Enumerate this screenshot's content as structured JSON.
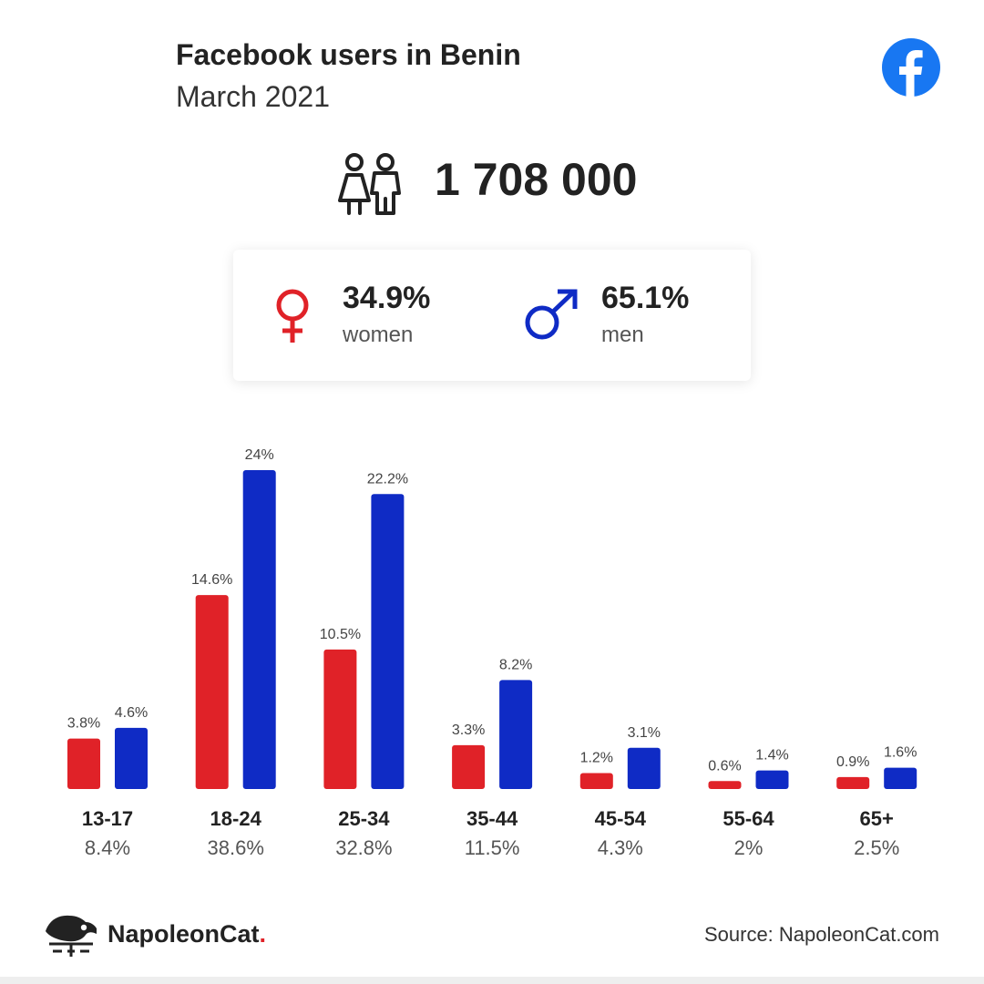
{
  "header": {
    "title": "Facebook users in Benin",
    "subtitle": "March 2021"
  },
  "flag": {
    "green": "#008751",
    "yellow": "#fcd116",
    "red": "#e8112d"
  },
  "icons": {
    "brand": "facebook-logo-icon",
    "people": "people-icon",
    "female": "female-symbol-icon",
    "male": "male-symbol-icon"
  },
  "summary": {
    "total_users": "1 708 000",
    "women_pct": "34.9%",
    "women_label": "women",
    "men_pct": "65.1%",
    "men_label": "men"
  },
  "colors": {
    "women": "#e02228",
    "men": "#0f2bc5",
    "facebook": "#1877f2"
  },
  "chart_data": {
    "type": "bar",
    "categories": [
      "13-17",
      "18-24",
      "25-34",
      "35-44",
      "45-54",
      "55-64",
      "65+"
    ],
    "category_totals": [
      "8.4%",
      "38.6%",
      "32.8%",
      "11.5%",
      "4.3%",
      "2%",
      "2.5%"
    ],
    "series": [
      {
        "name": "women",
        "values": [
          3.8,
          14.6,
          10.5,
          3.3,
          1.2,
          0.6,
          0.9
        ],
        "labels": [
          "3.8%",
          "14.6%",
          "10.5%",
          "3.3%",
          "1.2%",
          "0.6%",
          "0.9%"
        ],
        "color": "#e02228"
      },
      {
        "name": "men",
        "values": [
          4.6,
          24,
          22.2,
          8.2,
          3.1,
          1.4,
          1.6
        ],
        "labels": [
          "4.6%",
          "24%",
          "22.2%",
          "8.2%",
          "3.1%",
          "1.4%",
          "1.6%"
        ],
        "color": "#0f2bc5"
      }
    ],
    "ylim": [
      0,
      24
    ],
    "grid": false
  },
  "footer": {
    "brand_name": "NapoleonCat",
    "brand_dot": ".",
    "source": "Source: NapoleonCat.com"
  }
}
